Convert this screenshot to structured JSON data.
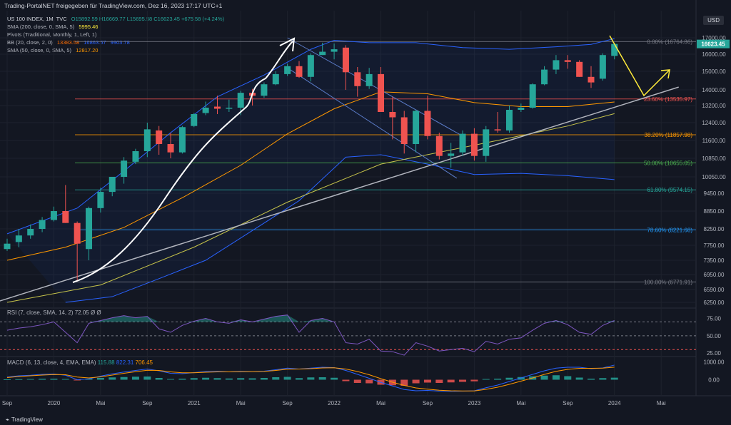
{
  "header": {
    "publisher": "Trading-PortalNET freigegeben für TradingView.com, Dez 16, 2023 17:17 UTC+1"
  },
  "legend": {
    "symbol": {
      "label": "US 100 INDEX, 1M, TVC",
      "ohlc": "O15892.59 H16669.77 L15695.58 C16623.45 +675.58 (+4.24%)"
    },
    "sma200": {
      "label": "SMA (200, close, 0, SMA, 5)",
      "value": "5995.46",
      "color": "#ffeb3b"
    },
    "pivots": {
      "label": "Pivots (Traditional, Monthly, 1, Left, 1)"
    },
    "bb": {
      "label": "BB (20, close, 2, 0)",
      "v1": "13383.58",
      "v2": "16863.57",
      "v3": "9903.78",
      "c1": "#ff6d00",
      "c2": "#2962ff",
      "c3": "#2962ff"
    },
    "sma50": {
      "label": "SMA (50, close, 0, SMA, 5)",
      "value": "12817.20",
      "color": "#ff9800"
    }
  },
  "currency": "USD",
  "footer": {
    "brand": "TradingView"
  },
  "colors": {
    "up": "#26a69a",
    "down": "#ef5350",
    "bb": "#2962ff",
    "sma50": "#ff9800",
    "sma200": "#c6c34a",
    "trend": "#b2b5be",
    "annot": "#ffeb3b"
  },
  "chart_data": [
    {
      "type": "candlestick",
      "title": "US 100 INDEX, 1M, TVC",
      "x_labels": [
        {
          "i": 0,
          "label": "Sep"
        },
        {
          "i": 4,
          "label": "2020"
        },
        {
          "i": 8,
          "label": "Mai"
        },
        {
          "i": 12,
          "label": "Sep"
        },
        {
          "i": 16,
          "label": "2021"
        },
        {
          "i": 20,
          "label": "Mai"
        },
        {
          "i": 24,
          "label": "Sep"
        },
        {
          "i": 28,
          "label": "2022"
        },
        {
          "i": 32,
          "label": "Mai"
        },
        {
          "i": 36,
          "label": "Sep"
        },
        {
          "i": 40,
          "label": "2023"
        },
        {
          "i": 44,
          "label": "Mai"
        },
        {
          "i": 48,
          "label": "Sep"
        },
        {
          "i": 52,
          "label": "2024"
        },
        {
          "i": 56,
          "label": "Mai"
        }
      ],
      "y_ticks": [
        6250,
        6590,
        6950,
        7350,
        7750,
        8250,
        8850,
        9450,
        10050,
        10850,
        11600,
        12400,
        13200,
        14000,
        15000,
        16000,
        17000
      ],
      "last_price": {
        "value": 16623.45,
        "label": "16623.45"
      },
      "candles": [
        {
          "o": 7650,
          "h": 7950,
          "l": 7600,
          "c": 7800
        },
        {
          "o": 7850,
          "h": 8250,
          "l": 7700,
          "c": 8050
        },
        {
          "o": 8050,
          "h": 8400,
          "l": 7950,
          "c": 8250
        },
        {
          "o": 8250,
          "h": 8650,
          "l": 8150,
          "c": 8550
        },
        {
          "o": 8550,
          "h": 9000,
          "l": 8500,
          "c": 8850
        },
        {
          "o": 8850,
          "h": 9750,
          "l": 8450,
          "c": 8450
        },
        {
          "o": 8450,
          "h": 8500,
          "l": 6800,
          "c": 7800
        },
        {
          "o": 7650,
          "h": 9000,
          "l": 7350,
          "c": 8950
        },
        {
          "o": 8950,
          "h": 9650,
          "l": 8800,
          "c": 9500
        },
        {
          "o": 9500,
          "h": 10050,
          "l": 9350,
          "c": 10050
        },
        {
          "o": 10050,
          "h": 10900,
          "l": 9800,
          "c": 10750
        },
        {
          "o": 10700,
          "h": 11250,
          "l": 10600,
          "c": 11150
        },
        {
          "o": 11150,
          "h": 12400,
          "l": 10900,
          "c": 12100
        },
        {
          "o": 12050,
          "h": 12250,
          "l": 11000,
          "c": 11450
        },
        {
          "o": 11450,
          "h": 11950,
          "l": 10850,
          "c": 11100
        },
        {
          "o": 11100,
          "h": 12250,
          "l": 11050,
          "c": 12200
        },
        {
          "o": 12250,
          "h": 12850,
          "l": 12200,
          "c": 12800
        },
        {
          "o": 12850,
          "h": 13400,
          "l": 12750,
          "c": 13100
        },
        {
          "o": 13150,
          "h": 13700,
          "l": 12800,
          "c": 13050
        },
        {
          "o": 13050,
          "h": 13500,
          "l": 12900,
          "c": 13100
        },
        {
          "o": 13100,
          "h": 13950,
          "l": 12750,
          "c": 13850
        },
        {
          "o": 13850,
          "h": 14050,
          "l": 13200,
          "c": 13700
        },
        {
          "o": 13700,
          "h": 14400,
          "l": 13600,
          "c": 14300
        },
        {
          "o": 14300,
          "h": 15000,
          "l": 14250,
          "c": 14850
        },
        {
          "o": 14850,
          "h": 15450,
          "l": 14750,
          "c": 15300
        },
        {
          "o": 15300,
          "h": 15600,
          "l": 14650,
          "c": 14700
        },
        {
          "o": 14700,
          "h": 16050,
          "l": 14450,
          "c": 15950
        },
        {
          "o": 15950,
          "h": 16700,
          "l": 15950,
          "c": 16150
        },
        {
          "o": 16150,
          "h": 16650,
          "l": 15700,
          "c": 16300
        },
        {
          "o": 16400,
          "h": 16550,
          "l": 14000,
          "c": 14950
        },
        {
          "o": 14950,
          "h": 15250,
          "l": 13650,
          "c": 14200
        },
        {
          "o": 14200,
          "h": 15200,
          "l": 14050,
          "c": 14850
        },
        {
          "o": 14850,
          "h": 15250,
          "l": 12900,
          "c": 12900
        },
        {
          "o": 12900,
          "h": 13650,
          "l": 11650,
          "c": 12650
        },
        {
          "o": 12650,
          "h": 12950,
          "l": 11050,
          "c": 11450
        },
        {
          "o": 11450,
          "h": 13000,
          "l": 11100,
          "c": 12950
        },
        {
          "o": 12950,
          "h": 13700,
          "l": 11650,
          "c": 11800
        },
        {
          "o": 11800,
          "h": 11950,
          "l": 10800,
          "c": 10950
        },
        {
          "o": 10950,
          "h": 11500,
          "l": 10450,
          "c": 11050
        },
        {
          "o": 11100,
          "h": 12050,
          "l": 10950,
          "c": 11900
        },
        {
          "o": 11900,
          "h": 12150,
          "l": 10750,
          "c": 10950
        },
        {
          "o": 10950,
          "h": 12250,
          "l": 10700,
          "c": 12100
        },
        {
          "o": 12100,
          "h": 12900,
          "l": 11950,
          "c": 12050
        },
        {
          "o": 12050,
          "h": 13200,
          "l": 11950,
          "c": 13000
        },
        {
          "o": 13000,
          "h": 13300,
          "l": 12900,
          "c": 13100
        },
        {
          "o": 13100,
          "h": 14350,
          "l": 13050,
          "c": 14300
        },
        {
          "o": 14300,
          "h": 15300,
          "l": 14250,
          "c": 15100
        },
        {
          "o": 15100,
          "h": 15950,
          "l": 14850,
          "c": 15650
        },
        {
          "o": 15650,
          "h": 15950,
          "l": 15150,
          "c": 15550
        },
        {
          "o": 15550,
          "h": 15650,
          "l": 14700,
          "c": 14700
        },
        {
          "o": 14700,
          "h": 15300,
          "l": 14100,
          "c": 14400
        },
        {
          "o": 14600,
          "h": 16050,
          "l": 14500,
          "c": 15950
        },
        {
          "o": 15900,
          "h": 16700,
          "l": 15700,
          "c": 16623
        }
      ],
      "bb_upper": [
        {
          "i": 0,
          "v": 8100
        },
        {
          "i": 6,
          "v": 8950
        },
        {
          "i": 10,
          "v": 10300
        },
        {
          "i": 14,
          "v": 11950
        },
        {
          "i": 18,
          "v": 13650
        },
        {
          "i": 22,
          "v": 14800
        },
        {
          "i": 26,
          "v": 16300
        },
        {
          "i": 28,
          "v": 16850
        },
        {
          "i": 31,
          "v": 16700
        },
        {
          "i": 35,
          "v": 16700
        },
        {
          "i": 39,
          "v": 16400
        },
        {
          "i": 43,
          "v": 16300
        },
        {
          "i": 47,
          "v": 16450
        },
        {
          "i": 50,
          "v": 16600
        },
        {
          "i": 52,
          "v": 16950
        }
      ],
      "bb_lower": [
        {
          "i": 5,
          "v": 6250
        },
        {
          "i": 9,
          "v": 6400
        },
        {
          "i": 13,
          "v": 6850
        },
        {
          "i": 17,
          "v": 7350
        },
        {
          "i": 21,
          "v": 8200
        },
        {
          "i": 25,
          "v": 9200
        },
        {
          "i": 29,
          "v": 10900
        },
        {
          "i": 32,
          "v": 11000
        },
        {
          "i": 36,
          "v": 10600
        },
        {
          "i": 40,
          "v": 10150
        },
        {
          "i": 44,
          "v": 10200
        },
        {
          "i": 48,
          "v": 10100
        },
        {
          "i": 52,
          "v": 9950
        }
      ],
      "sma50": [
        {
          "i": 0,
          "v": 7350
        },
        {
          "i": 5,
          "v": 7700
        },
        {
          "i": 10,
          "v": 8300
        },
        {
          "i": 15,
          "v": 9300
        },
        {
          "i": 20,
          "v": 10550
        },
        {
          "i": 24,
          "v": 11900
        },
        {
          "i": 28,
          "v": 13050
        },
        {
          "i": 32,
          "v": 13900
        },
        {
          "i": 36,
          "v": 13800
        },
        {
          "i": 40,
          "v": 13350
        },
        {
          "i": 44,
          "v": 13150
        },
        {
          "i": 48,
          "v": 13150
        },
        {
          "i": 52,
          "v": 13380
        }
      ],
      "sma200": [
        {
          "i": 0,
          "v": 6250
        },
        {
          "i": 8,
          "v": 6700
        },
        {
          "i": 16,
          "v": 7700
        },
        {
          "i": 24,
          "v": 9150
        },
        {
          "i": 32,
          "v": 10600
        },
        {
          "i": 40,
          "v": 11400
        },
        {
          "i": 48,
          "v": 12250
        },
        {
          "i": 52,
          "v": 12820
        }
      ],
      "trendline": [
        {
          "i": -1,
          "v": 6250
        },
        {
          "i": 57.5,
          "v": 14150
        }
      ],
      "channel": [
        [
          {
            "i": 24,
            "v": 17000
          },
          {
            "i": 39,
            "v": 11800
          }
        ],
        [
          {
            "i": 24,
            "v": 15200
          },
          {
            "i": 38.5,
            "v": 10000
          }
        ]
      ],
      "fib_levels": [
        {
          "label": "0.00% (16764.86)",
          "v": 16764.86,
          "color": "#787b86"
        },
        {
          "label": "23.60% (13535.97)",
          "v": 13535.97,
          "color": "#ef5350"
        },
        {
          "label": "38.20% (11857.98)",
          "v": 11857.98,
          "color": "#ff9800"
        },
        {
          "label": "50.00% (10655.05)",
          "v": 10655.05,
          "color": "#4caf50"
        },
        {
          "label": "61.80% (9574.15)",
          "v": 9574.15,
          "color": "#26a69a"
        },
        {
          "label": "78.60% (8221.68)",
          "v": 8221.68,
          "color": "#2196f3"
        },
        {
          "label": "100.00% (6771.91)",
          "v": 6771.91,
          "color": "#787b86"
        }
      ]
    },
    {
      "type": "line",
      "title": "RSI (7, close, SMA, 14, 2)",
      "label": "RSI (7, close, SMA, 14, 2)  72.05  Ø  Ø",
      "ylim": [
        20,
        90
      ],
      "y_ticks": [
        25,
        50,
        75
      ],
      "upper_band": 70,
      "lower_band": 30,
      "mid": 50,
      "values": [
        58,
        61,
        63,
        66,
        70,
        55,
        40,
        68,
        72,
        76,
        79,
        76,
        78,
        60,
        55,
        65,
        71,
        75,
        70,
        68,
        73,
        70,
        74,
        78,
        80,
        55,
        72,
        75,
        70,
        40,
        38,
        45,
        28,
        27,
        22,
        40,
        35,
        28,
        30,
        32,
        27,
        42,
        38,
        45,
        47,
        58,
        68,
        72,
        66,
        55,
        52,
        65,
        72
      ]
    },
    {
      "type": "bar",
      "title": "MACD (6, 13, close, 4, EMA, EMA)",
      "label": "MACD (6, 13, close, 4, EMA, EMA)",
      "v1": "115.88",
      "v2": "822.31",
      "v3": "706.45",
      "ylim": [
        -900,
        1300
      ],
      "y_ticks": [
        0,
        1000
      ],
      "histogram": [
        20,
        30,
        40,
        55,
        60,
        40,
        -40,
        60,
        100,
        130,
        150,
        170,
        180,
        100,
        40,
        60,
        90,
        110,
        90,
        70,
        90,
        80,
        100,
        140,
        160,
        90,
        130,
        140,
        110,
        -80,
        -180,
        -200,
        -280,
        -310,
        -340,
        -200,
        -160,
        -180,
        -150,
        -120,
        -90,
        40,
        60,
        110,
        150,
        190,
        230,
        250,
        200,
        120,
        60,
        90,
        115
      ],
      "macd": [
        150,
        220,
        250,
        300,
        320,
        250,
        0,
        50,
        200,
        330,
        430,
        520,
        600,
        500,
        360,
        340,
        400,
        460,
        470,
        440,
        470,
        460,
        480,
        560,
        650,
        600,
        650,
        700,
        680,
        520,
        300,
        80,
        -150,
        -350,
        -550,
        -620,
        -600,
        -640,
        -650,
        -640,
        -620,
        -450,
        -300,
        -100,
        100,
        300,
        500,
        650,
        700,
        700,
        620,
        660,
        822
      ],
      "signal": [
        120,
        180,
        220,
        260,
        290,
        280,
        150,
        100,
        160,
        260,
        360,
        450,
        530,
        520,
        440,
        390,
        390,
        420,
        440,
        440,
        450,
        455,
        465,
        520,
        590,
        600,
        620,
        660,
        670,
        600,
        460,
        280,
        60,
        -140,
        -320,
        -460,
        -530,
        -590,
        -620,
        -630,
        -630,
        -540,
        -420,
        -260,
        -80,
        100,
        300,
        470,
        580,
        640,
        640,
        650,
        706
      ]
    }
  ]
}
